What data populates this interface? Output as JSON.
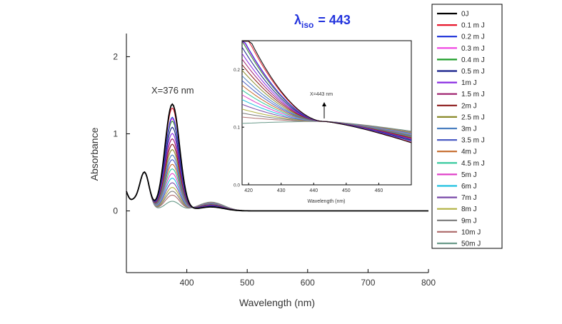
{
  "chart_data": [
    {
      "type": "line",
      "role": "main",
      "xlabel": "Wavelength (nm)",
      "ylabel": "Absorbance",
      "xlim": [
        300,
        800
      ],
      "ylim": [
        -0.8,
        2.3
      ],
      "xticks": [
        400,
        500,
        600,
        700,
        800
      ],
      "yticks": [
        0,
        1,
        2
      ],
      "grid": false,
      "legend_position": "right",
      "peak_annotation": "X=376 nm",
      "peak_x": 376,
      "series_peak_values": [
        {
          "name": "0J",
          "peak": 1.38
        },
        {
          "name": "0.1 m J",
          "peak": 1.33
        },
        {
          "name": "0.2 m J",
          "peak": 1.21
        },
        {
          "name": "0.3 m J",
          "peak": 1.19
        },
        {
          "name": "0.4 m J",
          "peak": 1.16
        },
        {
          "name": "0.5 m J",
          "peak": 1.08
        },
        {
          "name": "1m J",
          "peak": 1.0
        },
        {
          "name": "1.5 m J",
          "peak": 0.93
        },
        {
          "name": "2m J",
          "peak": 0.86
        },
        {
          "name": "2.5 m J",
          "peak": 0.79
        },
        {
          "name": "3m J",
          "peak": 0.72
        },
        {
          "name": "3.5 m J",
          "peak": 0.66
        },
        {
          "name": "4m J",
          "peak": 0.6
        },
        {
          "name": "4.5 m J",
          "peak": 0.54
        },
        {
          "name": "5m J",
          "peak": 0.48
        },
        {
          "name": "6m J",
          "peak": 0.42
        },
        {
          "name": "7m J",
          "peak": 0.36
        },
        {
          "name": "8m J",
          "peak": 0.3
        },
        {
          "name": "9m J",
          "peak": 0.25
        },
        {
          "name": "10m J",
          "peak": 0.2
        },
        {
          "name": "50m J",
          "peak": 0.12
        }
      ]
    },
    {
      "type": "line",
      "role": "inset",
      "xlabel": "Wavelength (nm)",
      "xlim": [
        418,
        470
      ],
      "ylim": [
        0.0,
        0.25
      ],
      "xticks": [
        420,
        430,
        440,
        450,
        460
      ],
      "yticks": [
        0.0,
        0.1,
        0.2
      ],
      "isosbestic_x": 443,
      "isosbestic_y": 0.11,
      "annotation": "X=443 nm"
    }
  ],
  "title": {
    "lambda": "λ",
    "subscript": "iso",
    "value": "= 443"
  },
  "legend": {
    "entries": [
      {
        "label": "0J",
        "color": "#000000"
      },
      {
        "label": "0.1 m J",
        "color": "#e8182d"
      },
      {
        "label": "0.2 m J",
        "color": "#1a2fd8"
      },
      {
        "label": "0.3 m J",
        "color": "#ef3fe0"
      },
      {
        "label": "0.4 m J",
        "color": "#1e9e2a"
      },
      {
        "label": "0.5 m J",
        "color": "#101a88"
      },
      {
        "label": "1m J",
        "color": "#8a2be2"
      },
      {
        "label": "1.5 m J",
        "color": "#9c1a6a"
      },
      {
        "label": "2m J",
        "color": "#8b1a1a"
      },
      {
        "label": "2.5 m J",
        "color": "#8a8a2a"
      },
      {
        "label": "3m J",
        "color": "#4a7fc0"
      },
      {
        "label": "3.5 m J",
        "color": "#4d5dc4"
      },
      {
        "label": "4m J",
        "color": "#c46a2a"
      },
      {
        "label": "4.5 m J",
        "color": "#2ec79a"
      },
      {
        "label": "5m J",
        "color": "#e040c8"
      },
      {
        "label": "6m J",
        "color": "#1ec0e0"
      },
      {
        "label": "7m J",
        "color": "#7a4aa8"
      },
      {
        "label": "8m J",
        "color": "#b0b040"
      },
      {
        "label": "9m J",
        "color": "#7a7a7a"
      },
      {
        "label": "10m J",
        "color": "#b07070"
      },
      {
        "label": "50m J",
        "color": "#6a9a8a"
      }
    ]
  }
}
